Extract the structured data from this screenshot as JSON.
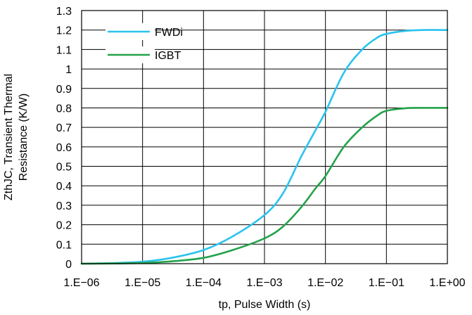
{
  "chart_data": {
    "type": "line",
    "title": "",
    "xlabel": "tp, Pulse Width (s)",
    "ylabel_lines": [
      "ZthJC, Transient Thermal",
      "Resistance (K/W)"
    ],
    "x_scale": "log",
    "xlim": [
      1e-06,
      1
    ],
    "ylim": [
      0,
      1.3
    ],
    "x_tick_values": [
      1e-06,
      1e-05,
      0.0001,
      0.001,
      0.01,
      0.1,
      1
    ],
    "x_tick_labels": [
      "1.E−06",
      "1.E−05",
      "1.E−04",
      "1.E−03",
      "1.E−02",
      "1.E−01",
      "1.E+00"
    ],
    "y_tick_values": [
      0,
      0.1,
      0.2,
      0.3,
      0.4,
      0.5,
      0.6,
      0.7,
      0.8,
      0.9,
      1,
      1.1,
      1.2,
      1.3
    ],
    "y_tick_labels": [
      "0",
      "0.1",
      "0.2",
      "0.3",
      "0.4",
      "0.5",
      "0.6",
      "0.7",
      "0.8",
      "0.9",
      "1",
      "1.1",
      "1.2",
      "1.3"
    ],
    "grid": true,
    "legend_position": "top-left",
    "series": [
      {
        "name": "FWDi",
        "color": "#29c3ee",
        "x": [
          1e-06,
          3e-06,
          1e-05,
          3e-05,
          0.0001,
          0.0003,
          0.001,
          0.002,
          0.004,
          0.007,
          0.01,
          0.02,
          0.04,
          0.07,
          0.1,
          0.2,
          0.4,
          1
        ],
        "y": [
          0,
          0.003,
          0.01,
          0.03,
          0.07,
          0.14,
          0.25,
          0.36,
          0.55,
          0.69,
          0.78,
          0.98,
          1.1,
          1.16,
          1.18,
          1.195,
          1.2,
          1.2
        ]
      },
      {
        "name": "IGBT",
        "color": "#22a24a",
        "x": [
          1e-06,
          3e-06,
          1e-05,
          3e-05,
          0.0001,
          0.0003,
          0.001,
          0.002,
          0.004,
          0.007,
          0.01,
          0.02,
          0.04,
          0.07,
          0.1,
          0.2,
          0.4,
          1
        ],
        "y": [
          0,
          0.001,
          0.004,
          0.012,
          0.03,
          0.07,
          0.13,
          0.19,
          0.29,
          0.39,
          0.45,
          0.6,
          0.7,
          0.76,
          0.785,
          0.798,
          0.8,
          0.8
        ]
      }
    ]
  }
}
